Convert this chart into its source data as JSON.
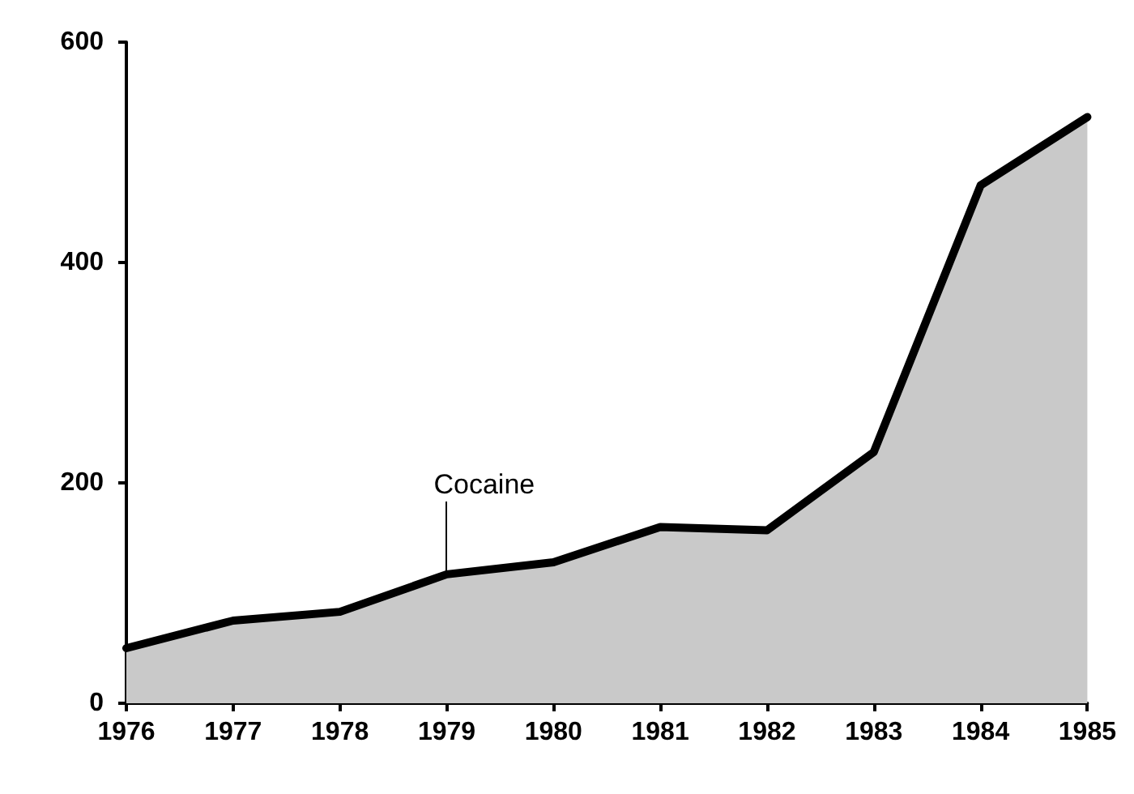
{
  "chart_data": {
    "type": "area",
    "categories": [
      "1976",
      "1977",
      "1978",
      "1979",
      "1980",
      "1981",
      "1982",
      "1983",
      "1984",
      "1985"
    ],
    "series": [
      {
        "color": "#c9c9c9",
        "values": [
          50,
          75,
          83,
          117,
          128,
          160,
          157,
          228,
          470,
          532
        ]
      }
    ],
    "ylim": [
      0,
      600
    ],
    "yticks": [
      0,
      200,
      400,
      600
    ],
    "grid": false,
    "marker": "none",
    "line_style": "solid",
    "annotations": [
      {
        "text": "Cocaine",
        "x": "1979",
        "y": 117
      }
    ]
  }
}
